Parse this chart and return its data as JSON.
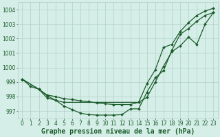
{
  "xlabel": "Graphe pression niveau de la mer (hPa)",
  "background_color": "#d6eee8",
  "grid_color": "#b0cfc7",
  "line_color": "#1a5c2a",
  "marker": "D",
  "markersize": 2.0,
  "linewidth": 0.9,
  "xlim": [
    -0.5,
    23.5
  ],
  "ylim": [
    996.5,
    1004.5
  ],
  "yticks": [
    997,
    998,
    999,
    1000,
    1001,
    1002,
    1003,
    1004
  ],
  "xticks": [
    0,
    1,
    2,
    3,
    4,
    5,
    6,
    7,
    8,
    9,
    10,
    11,
    12,
    13,
    14,
    15,
    16,
    17,
    18,
    19,
    20,
    21,
    22,
    23
  ],
  "line1_x": [
    0,
    1,
    2,
    3,
    4,
    5,
    6,
    7,
    8,
    9,
    10,
    11,
    12,
    13,
    14,
    15,
    16,
    17,
    18,
    19,
    20,
    21,
    22,
    23
  ],
  "line1": [
    999.2,
    998.7,
    998.5,
    997.9,
    997.75,
    997.35,
    997.1,
    996.85,
    996.75,
    996.72,
    996.72,
    996.72,
    996.75,
    997.15,
    997.15,
    998.3,
    999.3,
    999.8,
    1001.2,
    1002.3,
    1002.7,
    1003.2,
    1003.6,
    1003.8
  ],
  "line2_x": [
    0,
    2,
    3,
    4,
    5,
    6,
    7,
    8,
    9,
    10,
    11,
    12,
    13,
    14,
    15,
    16,
    17,
    18,
    19,
    20,
    21,
    22,
    23
  ],
  "line2": [
    999.2,
    998.5,
    998.1,
    998.0,
    997.85,
    997.8,
    997.7,
    997.65,
    997.55,
    997.5,
    997.45,
    997.45,
    997.45,
    997.6,
    997.95,
    999.0,
    1000.1,
    1001.1,
    1001.5,
    1002.1,
    1001.6,
    1003.0,
    1003.8
  ],
  "line3_x": [
    0,
    2,
    3,
    4,
    5,
    14,
    15,
    16,
    17,
    18,
    19,
    20,
    21,
    22,
    23
  ],
  "line3": [
    999.2,
    998.5,
    998.05,
    997.75,
    997.6,
    997.6,
    998.9,
    999.85,
    1001.4,
    1001.6,
    1002.5,
    1003.1,
    1003.6,
    1003.9,
    1004.1
  ],
  "title_fontsize": 7,
  "tick_fontsize": 5.5
}
